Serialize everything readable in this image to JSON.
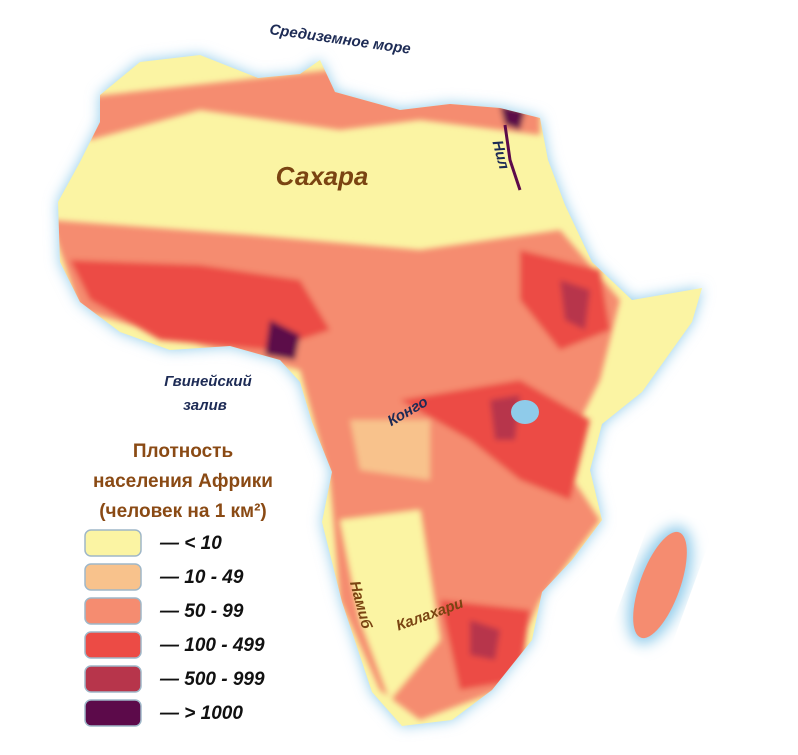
{
  "labels": {
    "sea": "Средиземное море",
    "nile": "Нил",
    "sahara": "Сахара",
    "gulf_line1": "Гвинейский",
    "gulf_line2": "залив",
    "congo": "Конго",
    "namib": "Намиб",
    "kalahari": "Калахари"
  },
  "legend": {
    "title": [
      "Плотность",
      "населения Африки",
      "(человек на 1 км²)"
    ],
    "items": [
      {
        "label": "— < 10",
        "color": "#fbf4a3"
      },
      {
        "label": "— 10 - 49",
        "color": "#f8c28c"
      },
      {
        "label": "— 50 - 99",
        "color": "#f58c70"
      },
      {
        "label": "— 100 - 499",
        "color": "#ec4b45"
      },
      {
        "label": "— 500 - 999",
        "color": "#b7354b"
      },
      {
        "label": "— > 1000",
        "color": "#5c0a4a"
      }
    ]
  }
}
